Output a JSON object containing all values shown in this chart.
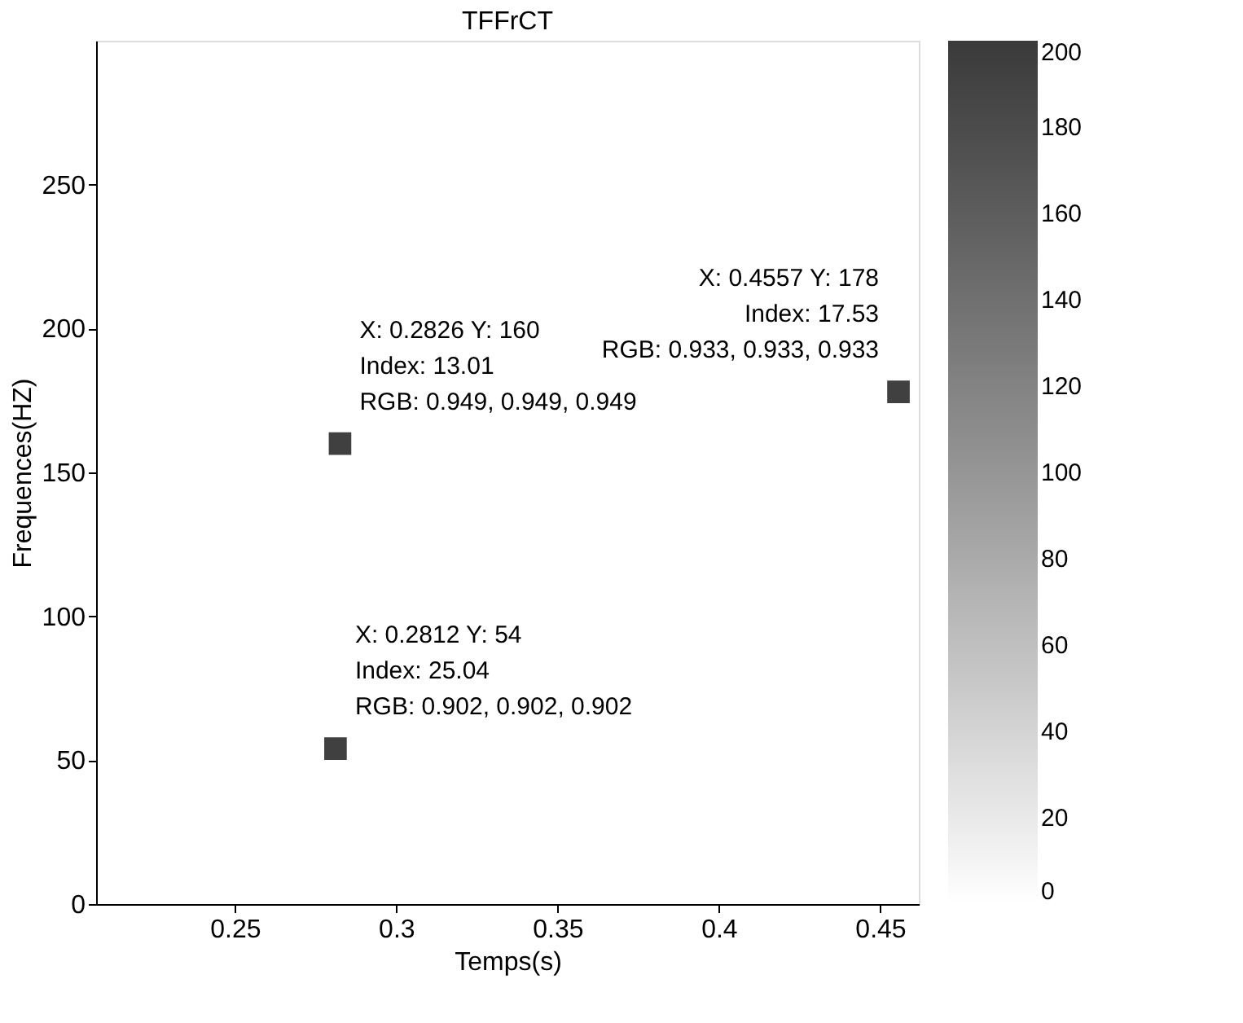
{
  "chart_data": {
    "type": "scatter",
    "title": "TFFrCT",
    "xlabel": "Temps(s)",
    "ylabel": "Frequences(HZ)",
    "x": [
      0.2826,
      0.2812,
      0.4557
    ],
    "series": [
      {
        "color": "#404040",
        "values": [
          160,
          54,
          178
        ]
      }
    ],
    "marker": "square",
    "xlim": [
      0.207,
      0.462
    ],
    "xticks": [
      0.25,
      0.3,
      0.35,
      0.4,
      0.45
    ],
    "ylim": [
      0,
      300
    ],
    "yticks": [
      0,
      50,
      100,
      150,
      200,
      250
    ],
    "clim": [
      0,
      200
    ],
    "cticks": [
      0,
      20,
      40,
      60,
      80,
      100,
      120,
      140,
      160,
      180,
      200
    ],
    "grid": false,
    "annotations": [
      {
        "text": "X: 0.2826 Y: 160\nIndex: 13.01\nRGB: 0.949, 0.949, 0.949",
        "x": 0.2826,
        "y": 160
      },
      {
        "text": "X: 0.2812 Y: 54\nIndex: 25.04\nRGB: 0.902, 0.902, 0.902",
        "x": 0.2812,
        "y": 54
      },
      {
        "text": "X: 0.4557 Y: 178\nIndex: 17.53\nRGB: 0.933, 0.933, 0.933",
        "x": 0.4557,
        "y": 178
      }
    ]
  }
}
